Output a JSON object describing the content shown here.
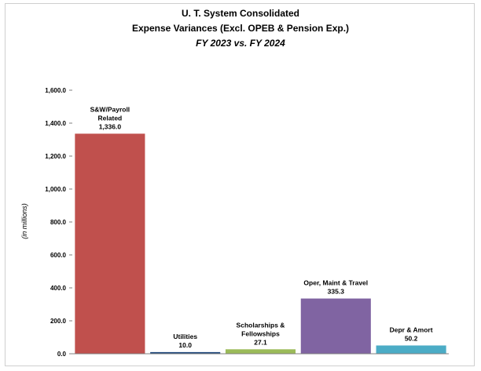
{
  "chart_data": {
    "type": "bar",
    "title_lines": [
      "U. T. System Consolidated",
      "Expense Variances (Excl. OPEB & Pension Exp.)"
    ],
    "subtitle": "FY 2023 vs. FY 2024",
    "ylabel": "(in millions)",
    "xlabel": "",
    "ylim": [
      0,
      1600
    ],
    "yticks": [
      0,
      200,
      400,
      600,
      800,
      1000,
      1200,
      1400,
      1600
    ],
    "ytick_labels": [
      "0.0",
      "200.0",
      "400.0",
      "600.0",
      "800.0",
      "1,000.0",
      "1,200.0",
      "1,400.0",
      "1,600.0"
    ],
    "grid": false,
    "legend": "none",
    "bars": [
      {
        "label_lines": [
          "S&W/Payroll",
          "Related"
        ],
        "value": 1336.0,
        "value_label": "1,336.0",
        "color": "#C0504D"
      },
      {
        "label_lines": [
          "Utilities"
        ],
        "value": 10.0,
        "value_label": "10.0",
        "color": "#1F497D"
      },
      {
        "label_lines": [
          "Scholarships &",
          "Fellowships"
        ],
        "value": 27.1,
        "value_label": "27.1",
        "color": "#9BBB59"
      },
      {
        "label_lines": [
          "Oper, Maint & Travel"
        ],
        "value": 335.3,
        "value_label": "335.3",
        "color": "#8064A2"
      },
      {
        "label_lines": [
          "Depr & Amort"
        ],
        "value": 50.2,
        "value_label": "50.2",
        "color": "#4BACC6"
      }
    ]
  }
}
